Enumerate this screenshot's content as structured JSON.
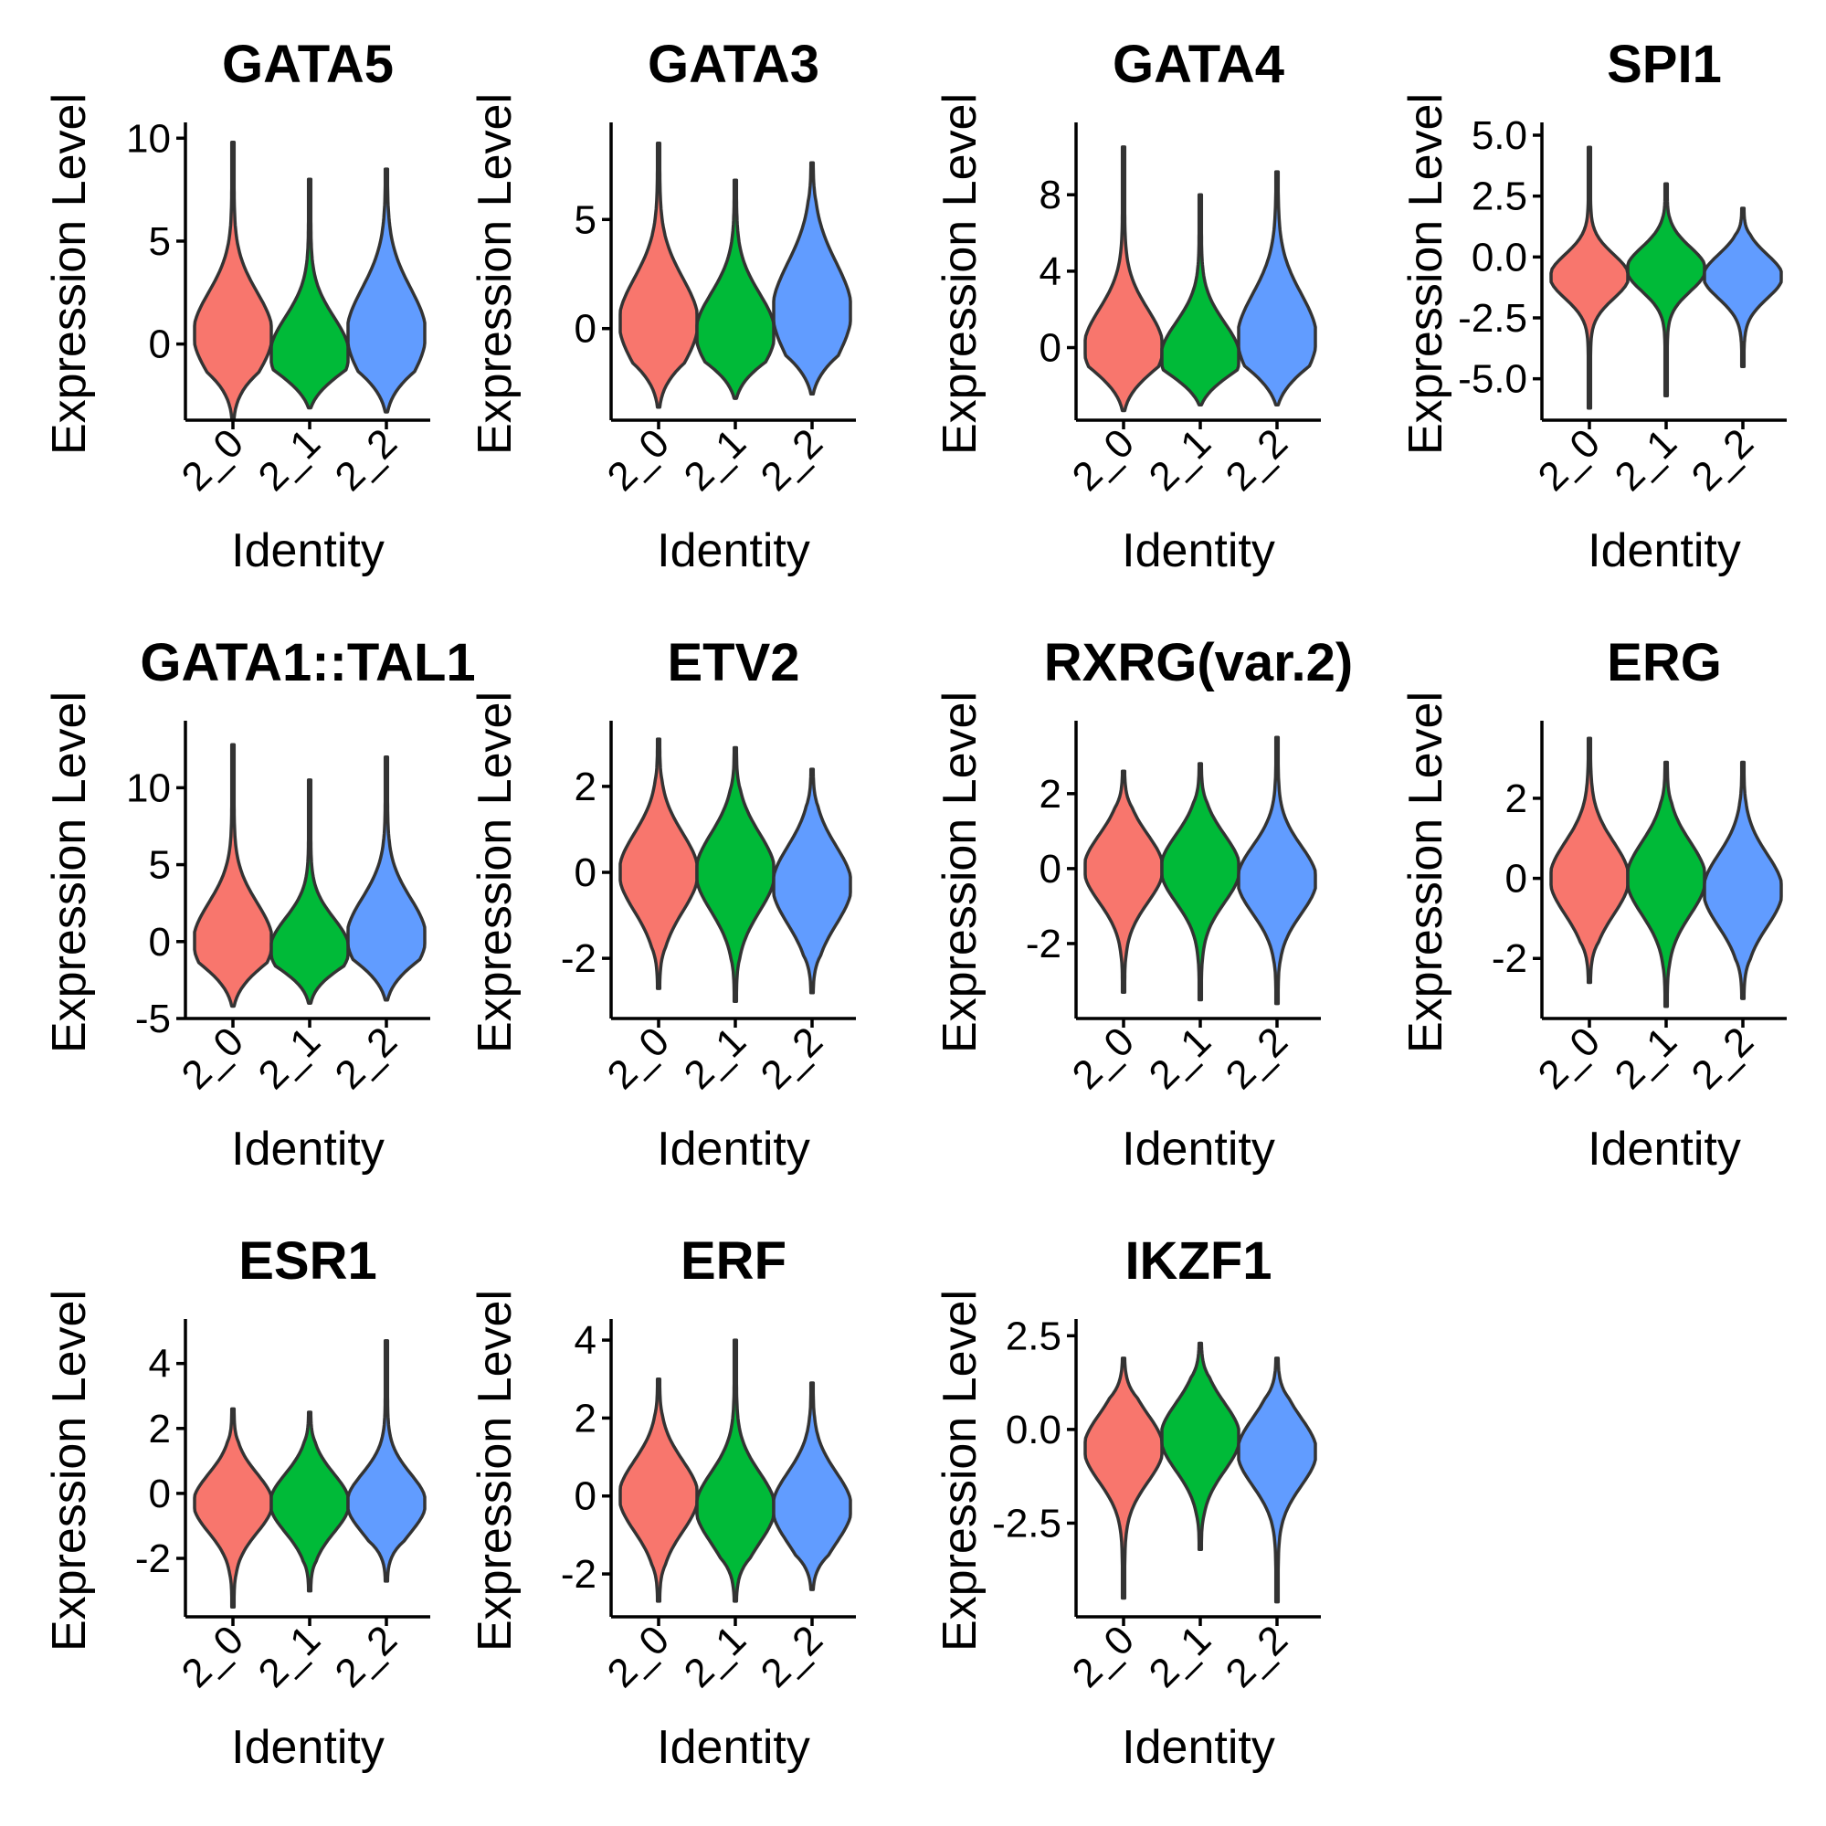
{
  "chart_data": {
    "type": "violin",
    "ylabel": "Expression Level",
    "xlabel": "Identity",
    "categories": [
      "2_0",
      "2_1",
      "2_2"
    ],
    "colors": {
      "2_0": "#F8766D",
      "2_1": "#00BA38",
      "2_2": "#619CFF"
    },
    "panels": [
      {
        "title": "GATA5",
        "ylim": [
          -3.7,
          10.5
        ],
        "yticks": [
          "0",
          "5",
          "10"
        ],
        "ytick_values": [
          0,
          5,
          10
        ],
        "violins": [
          {
            "group": "2_0",
            "min": -3.6,
            "max": 9.8,
            "mode": 0.5,
            "spread": 2.0
          },
          {
            "group": "2_1",
            "min": -3.1,
            "max": 8.0,
            "mode": -0.5,
            "spread": 1.8
          },
          {
            "group": "2_2",
            "min": -3.3,
            "max": 8.5,
            "mode": 0.5,
            "spread": 2.2
          }
        ]
      },
      {
        "title": "GATA3",
        "ylim": [
          -4.2,
          9.2
        ],
        "yticks": [
          "0",
          "5"
        ],
        "ytick_values": [
          0,
          5
        ],
        "violins": [
          {
            "group": "2_0",
            "min": -3.6,
            "max": 8.5,
            "mode": 0.3,
            "spread": 2.0
          },
          {
            "group": "2_1",
            "min": -3.2,
            "max": 6.8,
            "mode": -0.2,
            "spread": 1.8
          },
          {
            "group": "2_2",
            "min": -3.0,
            "max": 7.6,
            "mode": 0.8,
            "spread": 2.2
          }
        ]
      },
      {
        "title": "GATA4",
        "ylim": [
          -3.8,
          11.5
        ],
        "yticks": [
          "0",
          "4",
          "8"
        ],
        "ytick_values": [
          0,
          4,
          8
        ],
        "violins": [
          {
            "group": "2_0",
            "min": -3.3,
            "max": 10.5,
            "mode": 0.0,
            "spread": 2.0
          },
          {
            "group": "2_1",
            "min": -3.0,
            "max": 8.0,
            "mode": -0.5,
            "spread": 1.8
          },
          {
            "group": "2_2",
            "min": -3.0,
            "max": 9.2,
            "mode": 0.5,
            "spread": 2.3
          }
        ]
      },
      {
        "title": "SPI1",
        "ylim": [
          -6.7,
          5.3
        ],
        "yticks": [
          "5.0",
          "2.5",
          "0.0",
          "-2.5",
          "-5.0"
        ],
        "ytick_values": [
          5,
          2.5,
          0,
          -2.5,
          -5
        ],
        "violins": [
          {
            "group": "2_0",
            "min": -6.2,
            "max": 4.5,
            "mode": -0.8,
            "spread": 0.9
          },
          {
            "group": "2_1",
            "min": -5.7,
            "max": 3.0,
            "mode": -0.5,
            "spread": 0.9
          },
          {
            "group": "2_2",
            "min": -4.5,
            "max": 2.0,
            "mode": -0.8,
            "spread": 0.9
          }
        ]
      },
      {
        "title": "GATA1::TAL1",
        "ylim": [
          -5.0,
          14.0
        ],
        "yticks": [
          "10",
          "5",
          "0",
          "-5"
        ],
        "ytick_values": [
          10,
          5,
          0,
          -5
        ],
        "violins": [
          {
            "group": "2_0",
            "min": -4.2,
            "max": 12.8,
            "mode": 0.0,
            "spread": 2.5
          },
          {
            "group": "2_1",
            "min": -4.0,
            "max": 10.5,
            "mode": -0.5,
            "spread": 2.0
          },
          {
            "group": "2_2",
            "min": -3.8,
            "max": 12.0,
            "mode": 0.3,
            "spread": 2.5
          }
        ]
      },
      {
        "title": "ETV2",
        "ylim": [
          -3.4,
          3.4
        ],
        "yticks": [
          "2",
          "0",
          "-2"
        ],
        "ytick_values": [
          2,
          0,
          -2
        ],
        "violins": [
          {
            "group": "2_0",
            "min": -2.7,
            "max": 3.1,
            "mode": 0.0,
            "spread": 0.9
          },
          {
            "group": "2_1",
            "min": -3.0,
            "max": 2.9,
            "mode": 0.0,
            "spread": 0.9
          },
          {
            "group": "2_2",
            "min": -2.8,
            "max": 2.4,
            "mode": -0.3,
            "spread": 0.9
          }
        ]
      },
      {
        "title": "RXRG(var.2)",
        "ylim": [
          -4.0,
          3.8
        ],
        "yticks": [
          "2",
          "0",
          "-2"
        ],
        "ytick_values": [
          2,
          0,
          -2
        ],
        "violins": [
          {
            "group": "2_0",
            "min": -3.3,
            "max": 2.6,
            "mode": 0.0,
            "spread": 0.9
          },
          {
            "group": "2_1",
            "min": -3.5,
            "max": 2.8,
            "mode": 0.0,
            "spread": 0.9
          },
          {
            "group": "2_2",
            "min": -3.6,
            "max": 3.5,
            "mode": -0.3,
            "spread": 0.9
          }
        ]
      },
      {
        "title": "ERG",
        "ylim": [
          -3.5,
          3.8
        ],
        "yticks": [
          "2",
          "0",
          "-2"
        ],
        "ytick_values": [
          2,
          0,
          -2
        ],
        "violins": [
          {
            "group": "2_0",
            "min": -2.6,
            "max": 3.5,
            "mode": 0.0,
            "spread": 0.9
          },
          {
            "group": "2_1",
            "min": -3.2,
            "max": 2.9,
            "mode": 0.0,
            "spread": 0.9
          },
          {
            "group": "2_2",
            "min": -3.0,
            "max": 2.9,
            "mode": -0.3,
            "spread": 0.9
          }
        ]
      },
      {
        "title": "ESR1",
        "ylim": [
          -3.8,
          5.2
        ],
        "yticks": [
          "4",
          "2",
          "0",
          "-2"
        ],
        "ytick_values": [
          4,
          2,
          0,
          -2
        ],
        "violins": [
          {
            "group": "2_0",
            "min": -3.5,
            "max": 2.6,
            "mode": -0.3,
            "spread": 0.9
          },
          {
            "group": "2_1",
            "min": -3.0,
            "max": 2.5,
            "mode": -0.3,
            "spread": 0.9
          },
          {
            "group": "2_2",
            "min": -2.7,
            "max": 4.7,
            "mode": -0.3,
            "spread": 0.9
          }
        ]
      },
      {
        "title": "ERF",
        "ylim": [
          -3.1,
          4.4
        ],
        "yticks": [
          "4",
          "2",
          "0",
          "-2"
        ],
        "ytick_values": [
          4,
          2,
          0,
          -2
        ],
        "violins": [
          {
            "group": "2_0",
            "min": -2.7,
            "max": 3.0,
            "mode": 0.0,
            "spread": 0.9
          },
          {
            "group": "2_1",
            "min": -2.7,
            "max": 4.0,
            "mode": -0.3,
            "spread": 0.9
          },
          {
            "group": "2_2",
            "min": -2.4,
            "max": 2.9,
            "mode": -0.3,
            "spread": 0.9
          }
        ]
      },
      {
        "title": "IKZF1",
        "ylim": [
          -5.0,
          2.8
        ],
        "yticks": [
          "2.5",
          "0.0",
          "-2.5"
        ],
        "ytick_values": [
          2.5,
          0,
          -2.5
        ],
        "violins": [
          {
            "group": "2_0",
            "min": -4.5,
            "max": 1.9,
            "mode": -0.5,
            "spread": 0.9
          },
          {
            "group": "2_1",
            "min": -3.2,
            "max": 2.3,
            "mode": -0.2,
            "spread": 0.9
          },
          {
            "group": "2_2",
            "min": -4.6,
            "max": 1.9,
            "mode": -0.6,
            "spread": 0.9
          }
        ]
      }
    ]
  }
}
